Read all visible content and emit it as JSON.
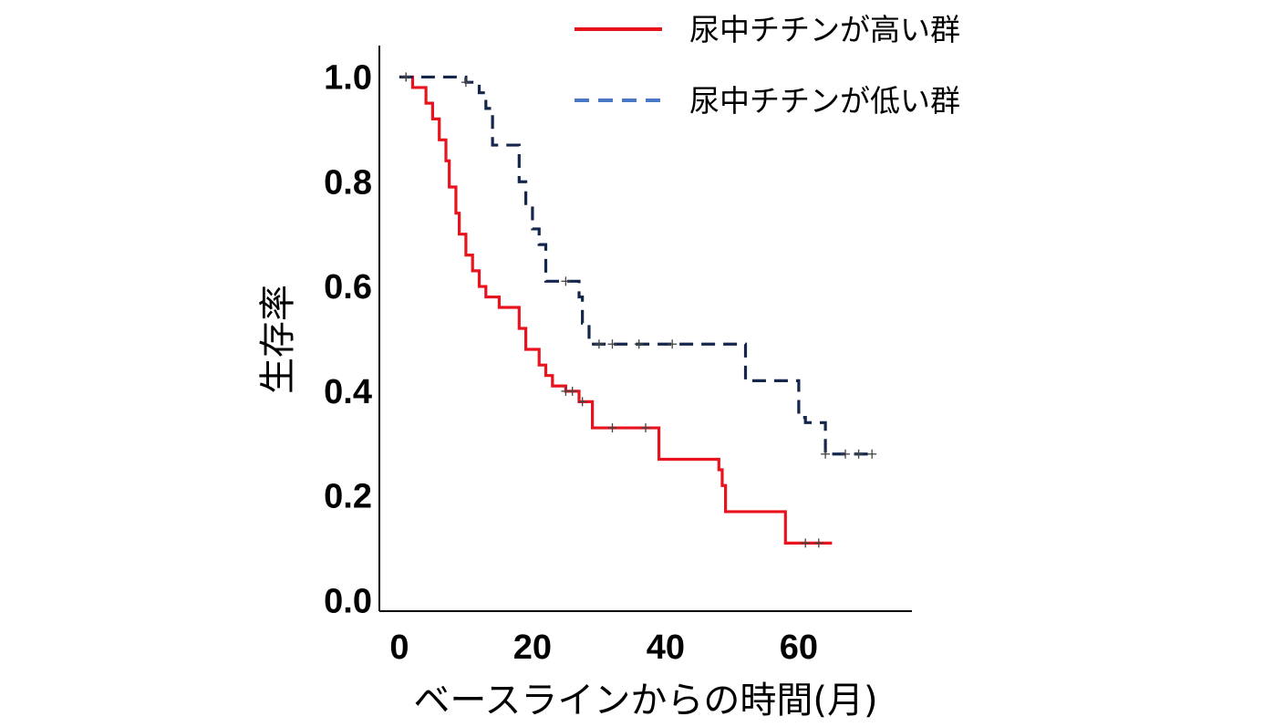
{
  "chart_data": {
    "type": "line",
    "title": "",
    "xlabel": "ベースラインからの時間(月)",
    "ylabel": "生存率",
    "xlim": [
      -3,
      77
    ],
    "ylim": [
      -0.02,
      1.06
    ],
    "x_ticks": [
      0,
      20,
      40,
      60
    ],
    "x_tick_labels": [
      "0",
      "20",
      "40",
      "60"
    ],
    "y_ticks": [
      0.0,
      0.2,
      0.4,
      0.6,
      0.8,
      1.0
    ],
    "y_tick_labels": [
      "0.0",
      "0.2",
      "0.4",
      "0.6",
      "0.8",
      "1.0"
    ],
    "grid": false,
    "legend": "top-right",
    "series": [
      {
        "name": "尿中チチンが高い群",
        "color": "#e8131d",
        "style": "solid",
        "x": [
          0,
          2,
          4,
          5,
          6,
          7,
          7.5,
          8.5,
          9,
          10,
          11,
          12,
          13,
          15,
          18,
          19,
          21,
          22,
          23,
          25,
          27,
          29,
          36,
          39,
          48,
          48.5,
          49,
          58,
          65
        ],
        "y": [
          1.0,
          0.98,
          0.95,
          0.92,
          0.88,
          0.84,
          0.79,
          0.74,
          0.7,
          0.66,
          0.63,
          0.6,
          0.58,
          0.56,
          0.52,
          0.48,
          0.45,
          0.43,
          0.41,
          0.4,
          0.38,
          0.33,
          0.33,
          0.27,
          0.25,
          0.22,
          0.17,
          0.11,
          0.11
        ],
        "censored": [
          [
            1,
            1.0
          ],
          [
            25,
            0.4
          ],
          [
            26,
            0.4
          ],
          [
            27.5,
            0.38
          ],
          [
            32,
            0.33
          ],
          [
            37,
            0.33
          ],
          [
            61,
            0.11
          ],
          [
            63,
            0.11
          ]
        ]
      },
      {
        "name": "尿中チチンが低い群",
        "color": "#14264c",
        "style": "dashed",
        "x": [
          0,
          10,
          12,
          13,
          14,
          18,
          19,
          20,
          21,
          22,
          27,
          27.5,
          28.5,
          52,
          60,
          61,
          64,
          71
        ],
        "y": [
          1.0,
          0.99,
          0.97,
          0.94,
          0.87,
          0.8,
          0.75,
          0.71,
          0.68,
          0.61,
          0.58,
          0.53,
          0.49,
          0.42,
          0.35,
          0.34,
          0.28,
          0.28
        ],
        "censored": [
          [
            1,
            1.0
          ],
          [
            10,
            0.99
          ],
          [
            25,
            0.61
          ],
          [
            30,
            0.49
          ],
          [
            32,
            0.49
          ],
          [
            36,
            0.49
          ],
          [
            41,
            0.49
          ],
          [
            64,
            0.28
          ],
          [
            67,
            0.28
          ],
          [
            69,
            0.28
          ],
          [
            71,
            0.28
          ]
        ]
      }
    ]
  }
}
